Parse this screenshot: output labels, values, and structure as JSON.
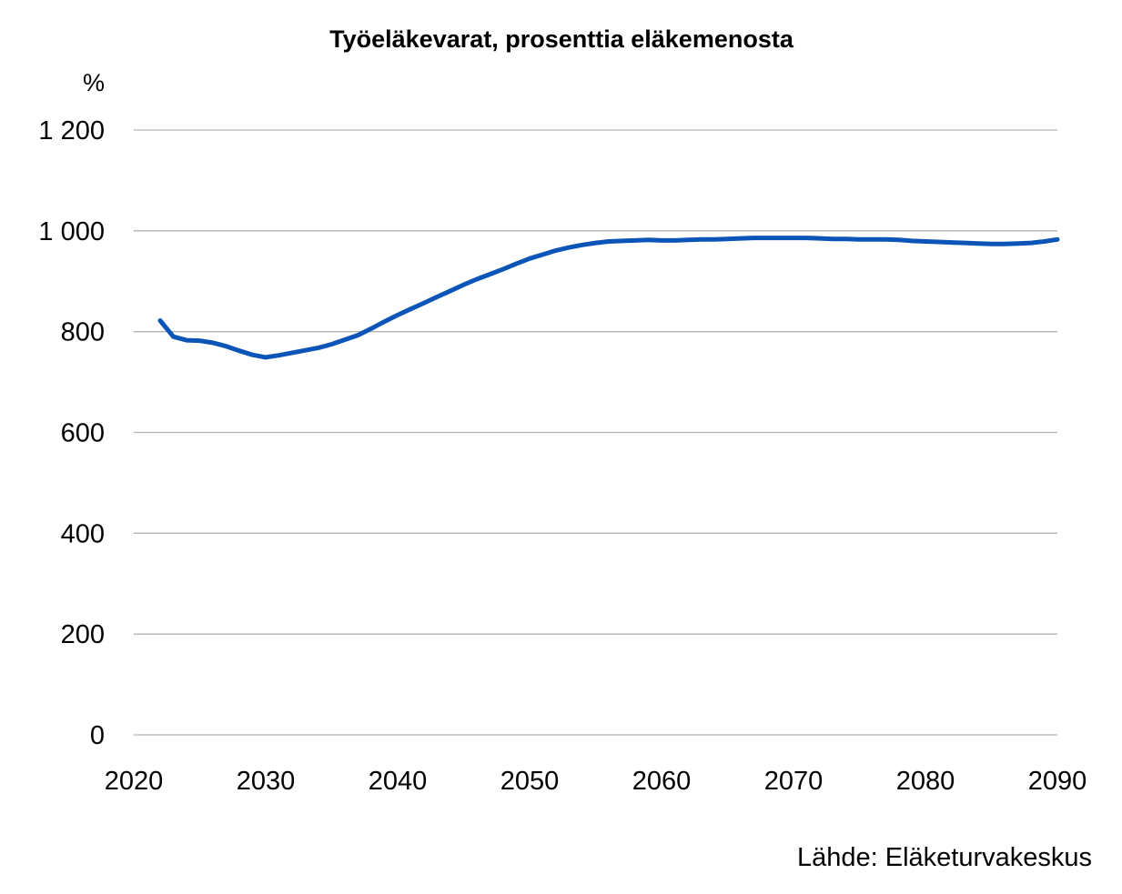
{
  "chart_data": {
    "type": "line",
    "title": "Työeläkevarat, prosenttia eläkemenosta",
    "ylabel": "%",
    "xlabel": "",
    "source": "Lähde: Eläketurvakeskus",
    "xlim": [
      2020,
      2090
    ],
    "ylim": [
      0,
      1200
    ],
    "x_ticks": [
      "2020",
      "2030",
      "2040",
      "2050",
      "2060",
      "2070",
      "2080",
      "2090"
    ],
    "y_ticks": [
      "0",
      "200",
      "400",
      "600",
      "800",
      "1 000",
      "1 200"
    ],
    "grid": "horizontal",
    "legend": "none",
    "series": [
      {
        "color": "#0a55b7",
        "x": [
          2022,
          2023,
          2024,
          2025,
          2026,
          2027,
          2028,
          2029,
          2030,
          2031,
          2032,
          2033,
          2034,
          2035,
          2036,
          2037,
          2038,
          2039,
          2040,
          2041,
          2042,
          2043,
          2044,
          2045,
          2046,
          2047,
          2048,
          2049,
          2050,
          2051,
          2052,
          2053,
          2054,
          2055,
          2056,
          2057,
          2058,
          2059,
          2060,
          2061,
          2062,
          2063,
          2064,
          2065,
          2066,
          2067,
          2068,
          2069,
          2070,
          2071,
          2072,
          2073,
          2074,
          2075,
          2076,
          2077,
          2078,
          2079,
          2080,
          2081,
          2082,
          2083,
          2084,
          2085,
          2086,
          2087,
          2088,
          2089,
          2090
        ],
        "values": [
          822,
          790,
          783,
          782,
          778,
          771,
          762,
          754,
          749,
          753,
          758,
          763,
          768,
          775,
          784,
          793,
          806,
          820,
          833,
          845,
          857,
          869,
          881,
          893,
          904,
          914,
          924,
          935,
          945,
          953,
          961,
          967,
          972,
          976,
          979,
          980,
          981,
          982,
          981,
          981,
          982,
          983,
          983,
          984,
          985,
          986,
          986,
          986,
          986,
          986,
          985,
          984,
          984,
          983,
          983,
          983,
          982,
          980,
          979,
          978,
          977,
          976,
          975,
          974,
          974,
          975,
          976,
          979,
          983
        ]
      }
    ]
  }
}
